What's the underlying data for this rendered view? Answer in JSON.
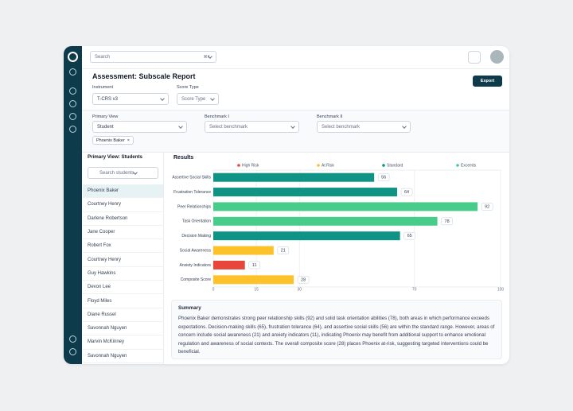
{
  "search": {
    "placeholder": "Search",
    "shortcut": "⌘K"
  },
  "header": {
    "title": "Assessment: Subscale Report",
    "export": "Export"
  },
  "filters": {
    "instrument_label": "Instrument",
    "instrument_value": "T-CRS v3",
    "score_type_label": "Score Type",
    "score_type_value": "Score Type",
    "primary_view_label": "Primary View",
    "primary_view_value": "Student",
    "benchmark1_label": "Benchmark I",
    "benchmark1_value": "Select benchmark",
    "benchmark2_label": "Benchmark II",
    "benchmark2_value": "Select benchmark",
    "chip": "Phoenix Baker"
  },
  "students": {
    "title": "Primary View: Students",
    "search_placeholder": "Search students",
    "names": [
      "Phoenix Baker",
      "Courtney Henry",
      "Darlene Robertson",
      "Jane Cooper",
      "Robert Fox",
      "Courtney Henry",
      "Guy Hawkins",
      "Devon Lee",
      "Floyd Miles",
      "Diane Russel",
      "Savonnah Nguyen",
      "Marvin McKinney",
      "Savonnah Nguyen"
    ]
  },
  "chart_data": {
    "type": "hbar",
    "title": "Results",
    "categories": [
      "Assertive Social Skills",
      "Frustration Tolerance",
      "Peer Relationships",
      "Task Orientation",
      "Decision Making",
      "Social Awareness",
      "Anxiety Indicators",
      "Composite Score"
    ],
    "values": [
      56,
      64,
      92,
      78,
      65,
      21,
      11,
      28
    ],
    "colors": [
      "#0e9384",
      "#0e9384",
      "#47cd89",
      "#47cd89",
      "#0e9384",
      "#fdc12a",
      "#e8463a",
      "#fdc12a"
    ],
    "legend": [
      {
        "name": "High Risk",
        "color": "#e8463a"
      },
      {
        "name": "At Risk",
        "color": "#fdc12a"
      },
      {
        "name": "Standard",
        "color": "#0e9384"
      },
      {
        "name": "Exceeds",
        "color": "#47cd89"
      }
    ],
    "xlim": [
      0,
      100
    ],
    "xticks": [
      0,
      15,
      30,
      70,
      100
    ]
  },
  "summary": {
    "title": "Summary",
    "text": "Phoenix Baker demonstrates strong peer relationship skills (92) and solid task orientation abilities (78), both areas in which performance exceeds expectations. Decision-making skills (65), frustration tolerance (64), and assertive social skills (56) are within the standard range. However, areas of concern include social awareness (21) and anxiety indicators (11), indicating Phoenix may benefit from additional support to enhance emotional regulation and awareness of social contexts. The overall composite score (28) places Phoenix at-risk, suggesting targeted interventions could be beneficial."
  }
}
